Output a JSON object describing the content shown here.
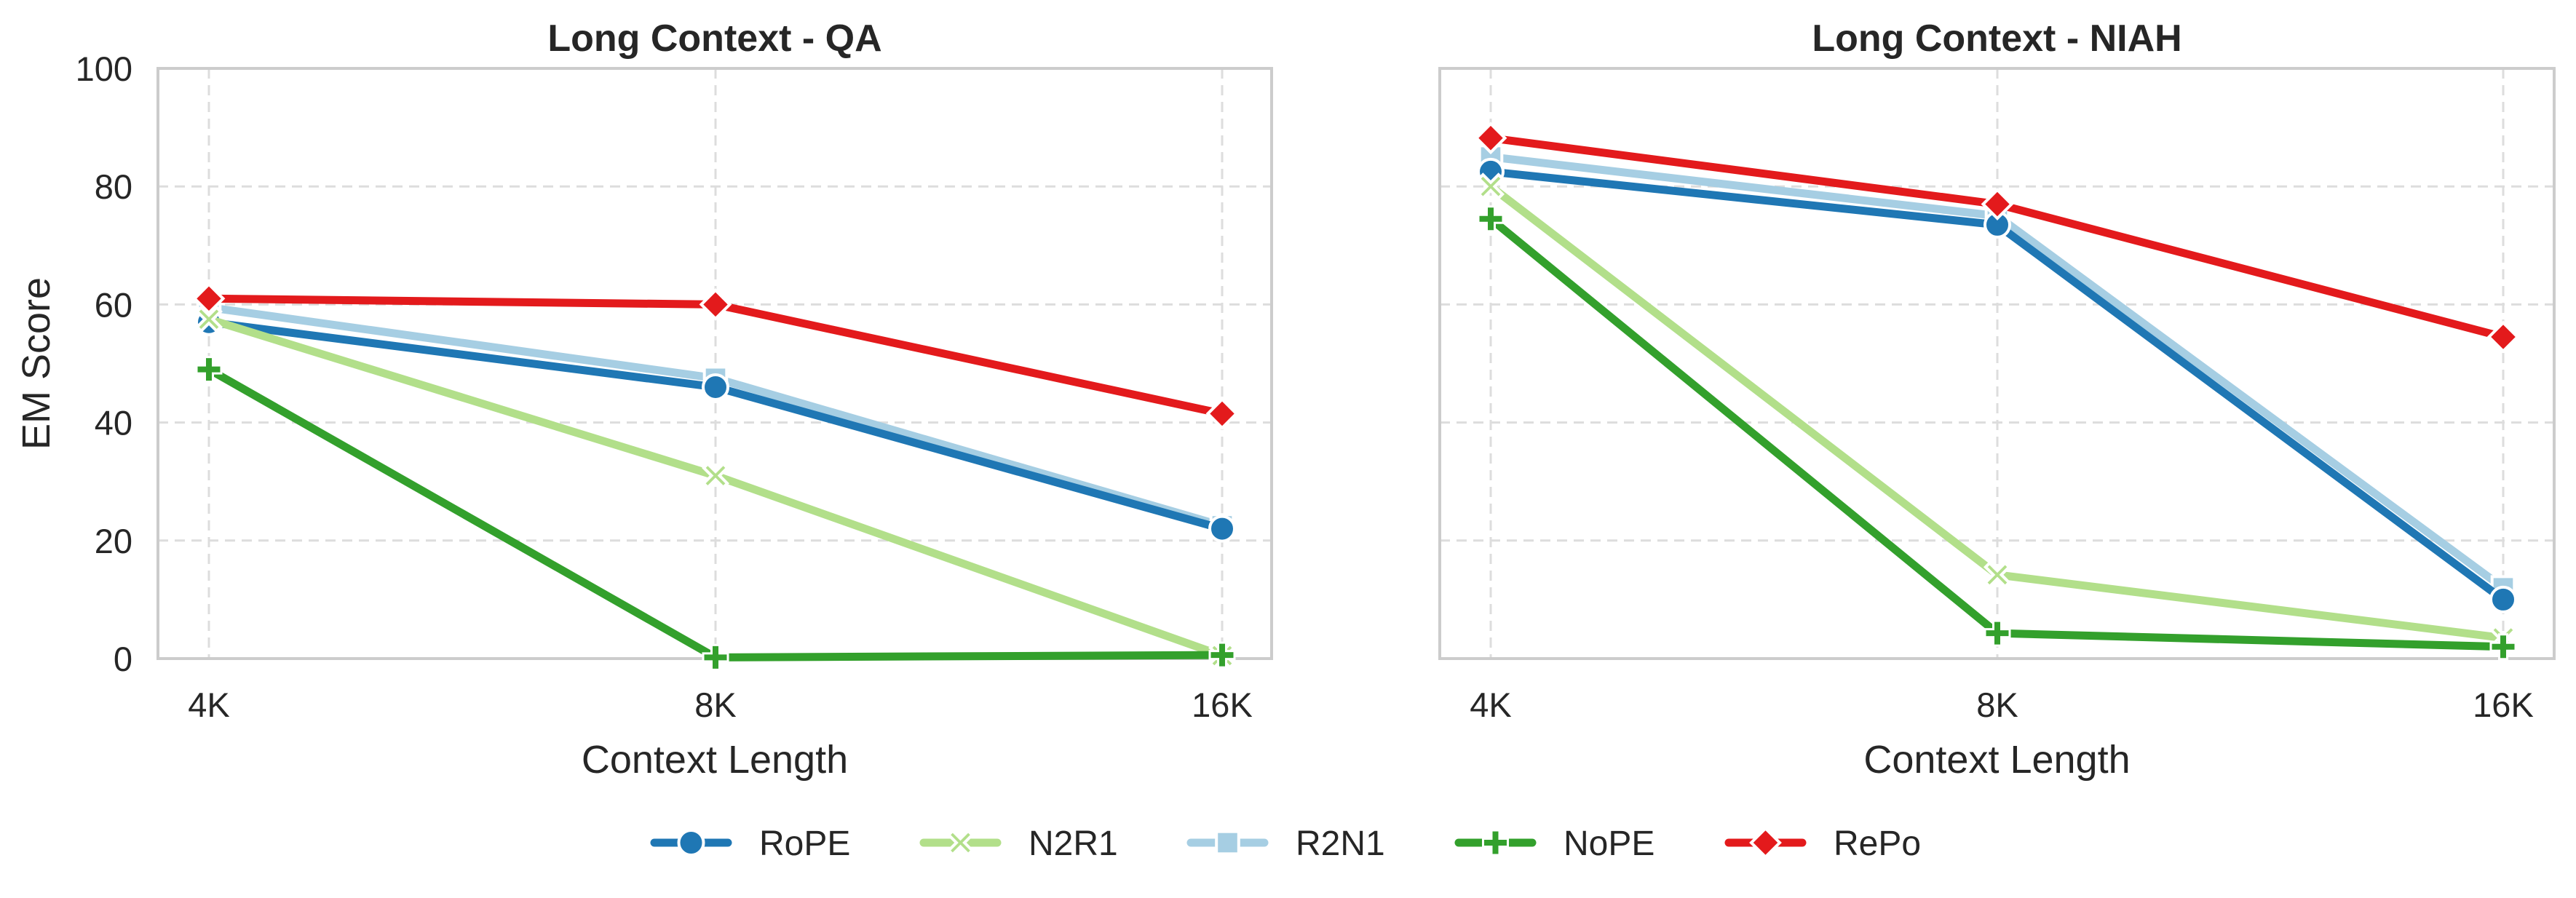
{
  "chart_data": [
    {
      "type": "line",
      "title": "Long Context - QA",
      "xlabel": "Context Length",
      "ylabel": "EM Score",
      "categories": [
        "4K",
        "8K",
        "16K"
      ],
      "ylim": [
        0,
        100
      ],
      "yticks": [
        0,
        20,
        40,
        60,
        80,
        100
      ],
      "grid": true,
      "series": [
        {
          "name": "RoPE",
          "values": [
            57.0,
            46.0,
            22.0
          ]
        },
        {
          "name": "N2R1",
          "values": [
            57.5,
            31.0,
            0.5
          ]
        },
        {
          "name": "R2N1",
          "values": [
            59.5,
            47.5,
            22.5
          ]
        },
        {
          "name": "NoPE",
          "values": [
            49.0,
            0.2,
            0.6
          ]
        },
        {
          "name": "RePo",
          "values": [
            61.0,
            60.0,
            41.5
          ]
        }
      ]
    },
    {
      "type": "line",
      "title": "Long Context - NIAH",
      "xlabel": "Context Length",
      "ylabel": "",
      "categories": [
        "4K",
        "8K",
        "16K"
      ],
      "ylim": [
        0,
        100
      ],
      "yticks": [
        0,
        20,
        40,
        60,
        80,
        100
      ],
      "grid": true,
      "series": [
        {
          "name": "RoPE",
          "values": [
            82.5,
            73.5,
            10.0
          ]
        },
        {
          "name": "N2R1",
          "values": [
            80.0,
            14.2,
            3.5
          ]
        },
        {
          "name": "R2N1",
          "values": [
            85.0,
            75.0,
            12.0
          ]
        },
        {
          "name": "NoPE",
          "values": [
            74.5,
            4.3,
            2.0
          ]
        },
        {
          "name": "RePo",
          "values": [
            88.2,
            77.0,
            54.5
          ]
        }
      ]
    }
  ],
  "legend": {
    "position": "bottom-center",
    "items": [
      {
        "name": "RoPE",
        "marker": "circle-icon",
        "color": "#1f77b4"
      },
      {
        "name": "N2R1",
        "marker": "x-icon",
        "color": "#b2df8a"
      },
      {
        "name": "R2N1",
        "marker": "square-icon",
        "color": "#a6cee3"
      },
      {
        "name": "NoPE",
        "marker": "plus-icon",
        "color": "#33a02c"
      },
      {
        "name": "RePo",
        "marker": "diamond-icon",
        "color": "#e31a1c"
      }
    ]
  },
  "series_styles": {
    "RoPE": {
      "color": "#1f77b4",
      "marker": "circle",
      "order": 1
    },
    "N2R1": {
      "color": "#b2df8a",
      "marker": "x",
      "order": 2
    },
    "R2N1": {
      "color": "#a6cee3",
      "marker": "square",
      "order": 0
    },
    "NoPE": {
      "color": "#33a02c",
      "marker": "plus",
      "order": 3
    },
    "RePo": {
      "color": "#e31a1c",
      "marker": "diamond",
      "order": 4
    }
  },
  "colors": {
    "axis_frame": "#cccccc",
    "grid": "#dddddd",
    "text": "#262626"
  }
}
